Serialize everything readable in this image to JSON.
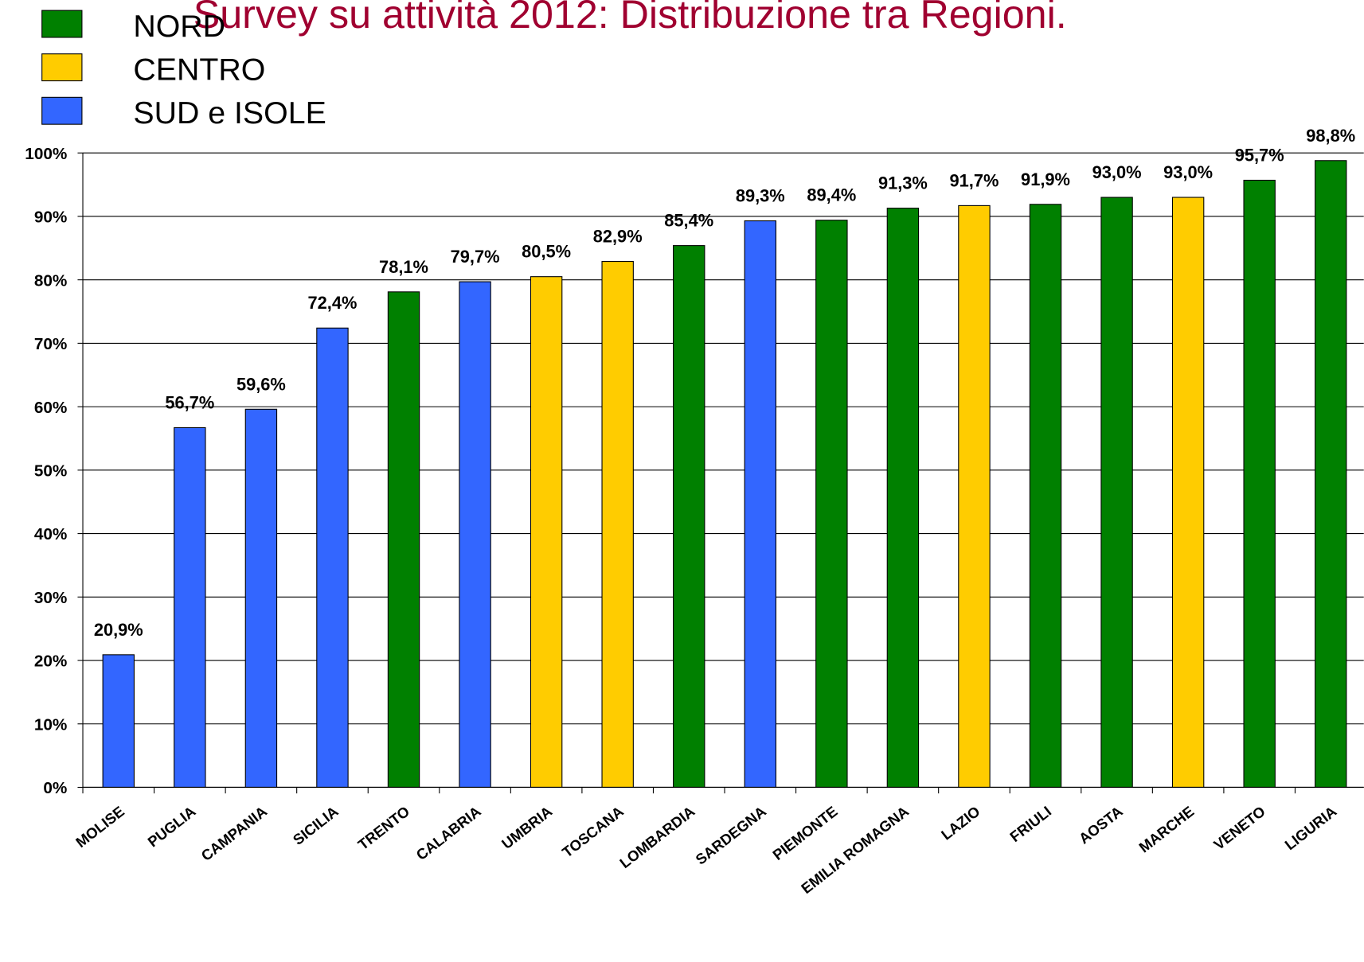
{
  "chart_data": {
    "type": "bar",
    "title": "Survey su attività 2012: Distribuzione tra Regioni.",
    "categories": [
      "MOLISE",
      "PUGLIA",
      "CAMPANIA",
      "SICILIA",
      "TRENTO",
      "CALABRIA",
      "UMBRIA",
      "TOSCANA",
      "LOMBARDIA",
      "SARDEGNA",
      "PIEMONTE",
      "EMILIA ROMAGNA",
      "LAZIO",
      "FRIULI",
      "AOSTA",
      "MARCHE",
      "VENETO",
      "LIGURIA"
    ],
    "series": [
      {
        "name": "NORD",
        "color": "#008000",
        "values": [
          null,
          null,
          null,
          null,
          78.1,
          null,
          null,
          null,
          85.4,
          null,
          89.4,
          91.3,
          null,
          91.9,
          93.0,
          null,
          95.7,
          98.8
        ],
        "value_labels": [
          null,
          null,
          null,
          null,
          "78,1%",
          null,
          null,
          null,
          "85,4%",
          null,
          "89,4%",
          "91,3%",
          null,
          "91,9%",
          "93,0%",
          null,
          "95,7%",
          "98,8%"
        ]
      },
      {
        "name": "CENTRO",
        "color": "#ffcc00",
        "values": [
          null,
          null,
          null,
          null,
          null,
          null,
          80.5,
          82.9,
          null,
          null,
          null,
          null,
          91.7,
          null,
          null,
          93.0,
          null,
          null
        ],
        "value_labels": [
          null,
          null,
          null,
          null,
          null,
          null,
          "80,5%",
          "82,9%",
          null,
          null,
          null,
          null,
          "91,7%",
          null,
          null,
          "93,0%",
          null,
          null
        ]
      },
      {
        "name": "SUD e ISOLE",
        "color": "#3366ff",
        "values": [
          20.9,
          56.7,
          59.6,
          72.4,
          null,
          79.7,
          null,
          null,
          null,
          89.3,
          null,
          null,
          null,
          null,
          null,
          null,
          null,
          null
        ],
        "value_labels": [
          "20,9%",
          "56,7%",
          "59,6%",
          "72,4%",
          null,
          "79,7%",
          null,
          null,
          null,
          "89,3%",
          null,
          null,
          null,
          null,
          null,
          null,
          null,
          null
        ]
      }
    ],
    "ylim": [
      0,
      100
    ],
    "yticks": [
      {
        "value": 0,
        "label": "0%"
      },
      {
        "value": 10,
        "label": "10%"
      },
      {
        "value": 20,
        "label": "20%"
      },
      {
        "value": 30,
        "label": "30%"
      },
      {
        "value": 40,
        "label": "40%"
      },
      {
        "value": 50,
        "label": "50%"
      },
      {
        "value": 60,
        "label": "60%"
      },
      {
        "value": 70,
        "label": "70%"
      },
      {
        "value": 80,
        "label": "80%"
      },
      {
        "value": 90,
        "label": "90%"
      },
      {
        "value": 100,
        "label": "100%"
      }
    ],
    "grid": true,
    "legend": "top-left"
  }
}
